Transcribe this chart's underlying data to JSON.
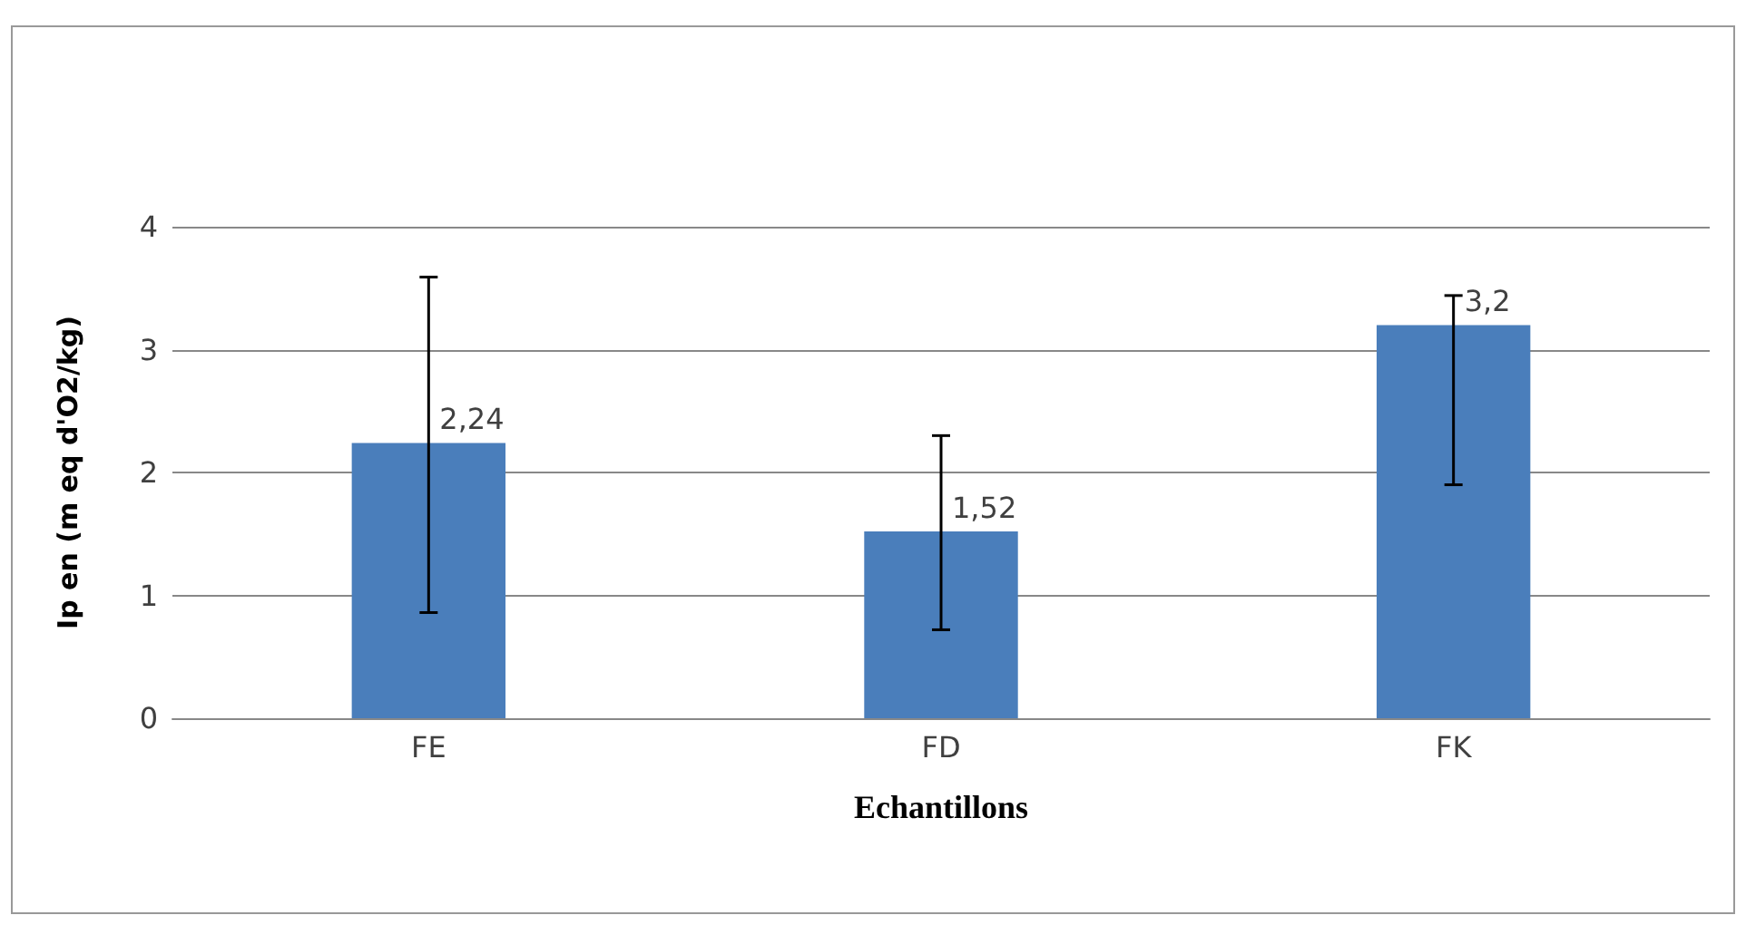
{
  "chart_data": {
    "type": "bar",
    "xlabel": "Echantillons",
    "ylabel": "Ip en (m eq d'O2/kg)",
    "categories": [
      "FE",
      "FD",
      "FK"
    ],
    "values": [
      2.24,
      1.52,
      3.2
    ],
    "value_labels": [
      "2,24",
      "1,52",
      "3,2"
    ],
    "errors": [
      [
        0.86,
        3.59
      ],
      [
        0.72,
        2.3
      ],
      [
        1.9,
        3.44
      ]
    ],
    "color": "#4a7ebb",
    "ylim": [
      0,
      4
    ],
    "yticks": [
      0,
      1,
      2,
      3,
      4
    ],
    "grid": "y"
  }
}
